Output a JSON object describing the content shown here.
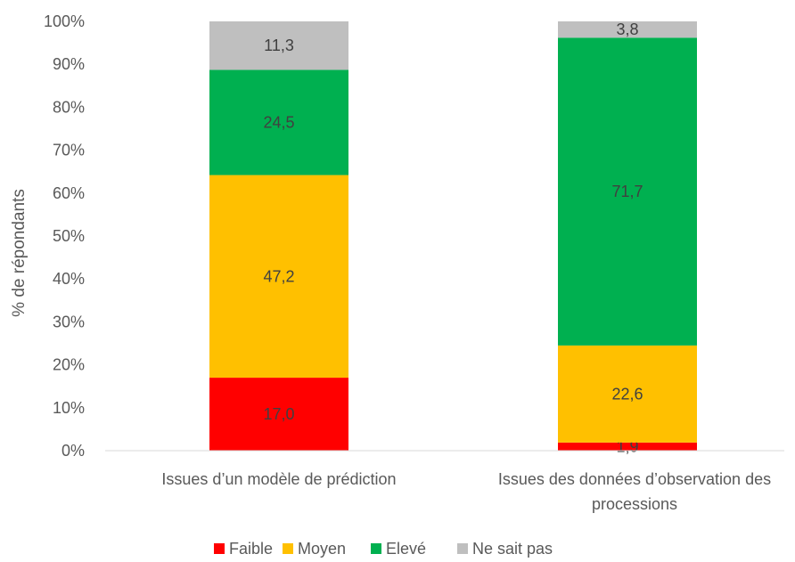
{
  "chart_data": {
    "type": "bar",
    "stacked": true,
    "categories": [
      [
        "Issues d’un modèle de prédiction"
      ],
      [
        "Issues des données d’observation des",
        "processions"
      ]
    ],
    "series": [
      {
        "name": "Faible",
        "color": "#ff0000",
        "values": [
          17.0,
          1.9
        ],
        "labels": [
          "17,0",
          "1,9"
        ]
      },
      {
        "name": "Moyen",
        "color": "#ffc000",
        "values": [
          47.2,
          22.6
        ],
        "labels": [
          "47,2",
          "22,6"
        ]
      },
      {
        "name": "Elevé",
        "color": "#00b050",
        "values": [
          24.5,
          71.7
        ],
        "labels": [
          "24,5",
          "71,7"
        ]
      },
      {
        "name": "Ne sait pas",
        "color": "#bfbfbf",
        "values": [
          11.3,
          3.8
        ],
        "labels": [
          "11,3",
          "3,8"
        ]
      }
    ],
    "ylabel": "% de répondants",
    "ylim": [
      0,
      100
    ],
    "yticks": [
      "0%",
      "10%",
      "20%",
      "30%",
      "40%",
      "50%",
      "60%",
      "70%",
      "80%",
      "90%",
      "100%"
    ],
    "grid": false,
    "legend": "bottom"
  }
}
